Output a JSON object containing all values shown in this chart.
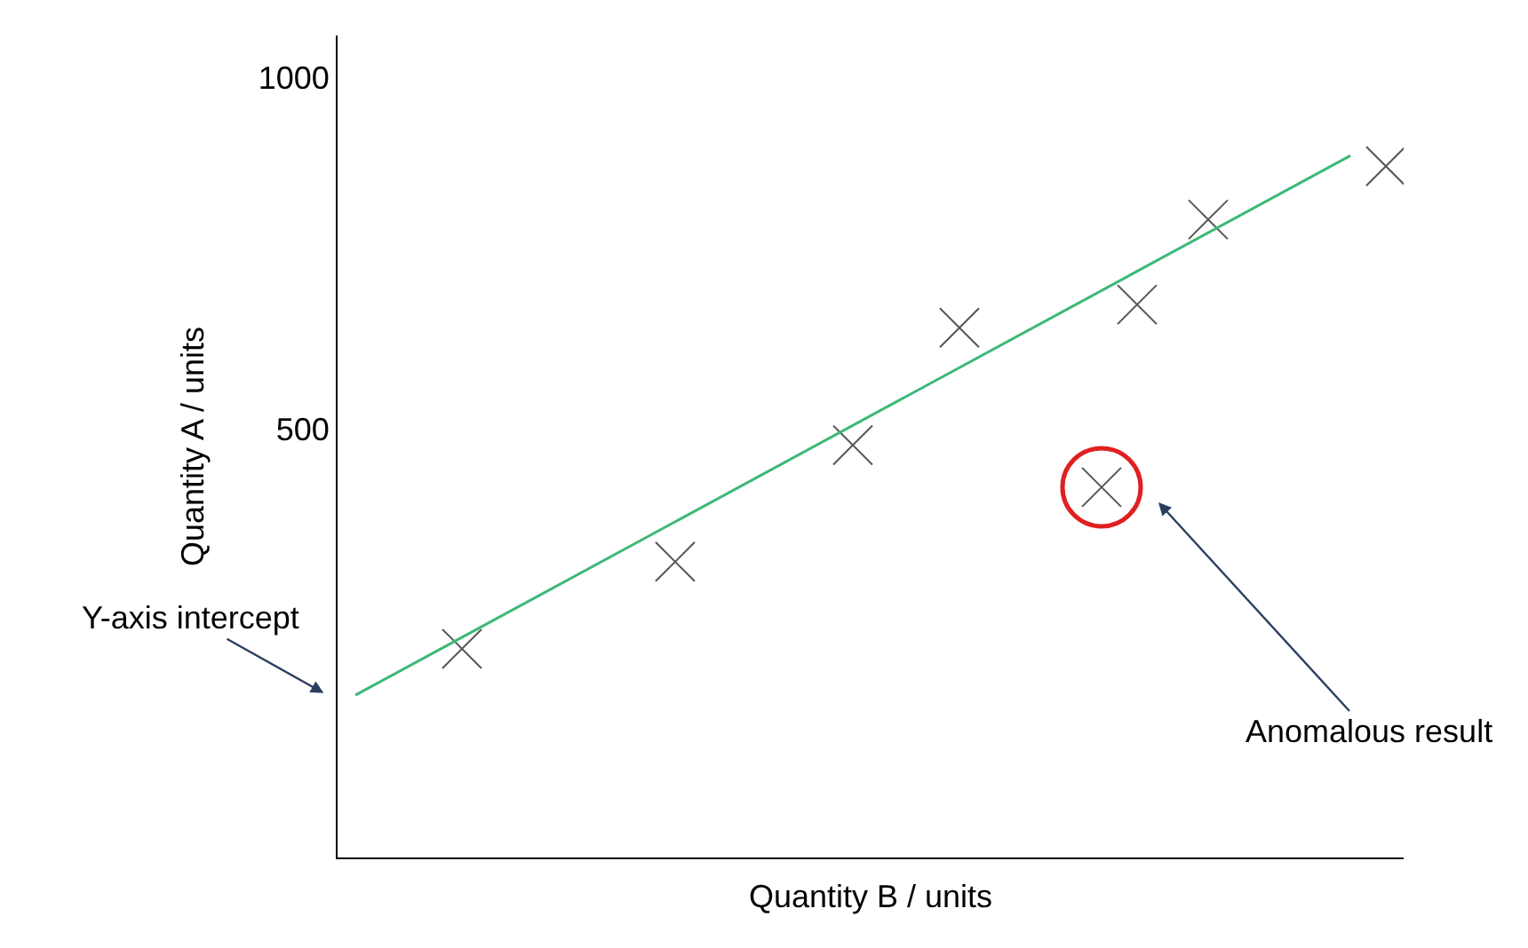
{
  "chart_data": {
    "type": "scatter",
    "xlabel": "Quantity B / units",
    "ylabel": "Quantity A / units",
    "categories": [
      null,
      null,
      null,
      null,
      null,
      null,
      null,
      null,
      null,
      null,
      null,
      null,
      null,
      null,
      null,
      null,
      null,
      null,
      null,
      null,
      null,
      null,
      null,
      null,
      null,
      null,
      null,
      null,
      null,
      null
    ],
    "ylim": [
      -110,
      1060
    ],
    "yticks": [
      500,
      1000
    ],
    "tick_labels": "y",
    "grid": false,
    "legend": false,
    "series": [
      {
        "marker": "cross",
        "color": "#555555",
        "values": [
          null,
          null,
          null,
          187,
          null,
          null,
          null,
          null,
          null,
          311,
          null,
          null,
          null,
          null,
          477,
          null,
          null,
          644,
          null,
          null,
          null,
          417,
          677,
          null,
          798,
          null,
          null,
          null,
          null,
          874
        ]
      },
      {
        "type": "line",
        "color": "#3cb878",
        "values": [
          121,
          null,
          null,
          null,
          null,
          null,
          null,
          null,
          null,
          null,
          null,
          null,
          null,
          null,
          null,
          null,
          null,
          null,
          null,
          null,
          null,
          null,
          null,
          null,
          null,
          null,
          null,
          null,
          889,
          null
        ]
      },
      {
        "type": "scatter",
        "marker": "circle",
        "color": "#e02020",
        "values": [
          null,
          null,
          null,
          null,
          null,
          null,
          null,
          null,
          null,
          null,
          null,
          null,
          null,
          null,
          null,
          null,
          null,
          null,
          null,
          null,
          null,
          417,
          null,
          null,
          null,
          null,
          null,
          null,
          null,
          null
        ]
      }
    ],
    "annotations": [
      "Y-axis intercept",
      "Anomalous result"
    ]
  }
}
